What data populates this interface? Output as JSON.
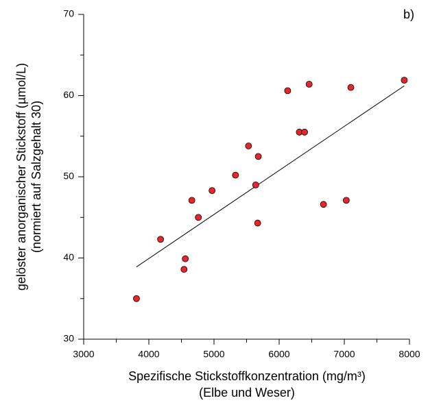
{
  "chart_data": {
    "type": "scatter",
    "annotation": "b)",
    "xlabel": [
      "Spezifische Stickstoffkonzentration (mg/m³)",
      "(Elbe und Weser)"
    ],
    "ylabel": [
      "gelöster anorganischer Stickstoff (µmol/L)",
      "(normiert auf Salzgehalt 30)"
    ],
    "xlim": [
      3000,
      8000
    ],
    "ylim": [
      30,
      70
    ],
    "xticks": [
      3000,
      4000,
      5000,
      6000,
      7000,
      8000
    ],
    "xminorticks": [
      3500,
      4500,
      5500,
      6500,
      7500
    ],
    "yticks": [
      30,
      40,
      50,
      60,
      70
    ],
    "yminorticks": [
      35,
      45,
      55,
      65
    ],
    "color": "#e8262a",
    "x": [
      3810,
      4180,
      4540,
      4560,
      4660,
      4760,
      4970,
      5330,
      5530,
      5640,
      5670,
      5680,
      6130,
      6310,
      6390,
      6460,
      6680,
      7030,
      7100,
      7920
    ],
    "y": [
      35.0,
      42.3,
      38.6,
      39.9,
      47.1,
      45.0,
      48.3,
      50.2,
      53.8,
      49.0,
      44.3,
      52.5,
      60.6,
      55.5,
      55.5,
      61.4,
      46.6,
      47.1,
      61.0,
      61.9
    ],
    "trend": {
      "x": [
        3810,
        7920
      ],
      "y": [
        38.9,
        61.2
      ]
    }
  }
}
